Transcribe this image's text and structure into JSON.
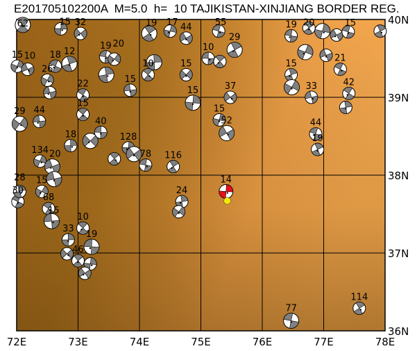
{
  "title": "E201705102200A  M=5.0  h=  10 TAJIKISTAN-XINJIANG BORDER REG.",
  "colors": {
    "main_event": "#e8101a",
    "epicenter": "#f5e800",
    "mechanism_fill": "#808080",
    "terrain_low": "#f2a040",
    "terrain_high": "#7a4c10"
  },
  "extent": {
    "lon": [
      72,
      78
    ],
    "lat": [
      36,
      40
    ]
  },
  "lon_ticks": [
    {
      "v": 72,
      "label": "72E"
    },
    {
      "v": 73,
      "label": "73E"
    },
    {
      "v": 74,
      "label": "74E"
    },
    {
      "v": 75,
      "label": "75E"
    },
    {
      "v": 76,
      "label": "76E"
    },
    {
      "v": 77,
      "label": "77E"
    },
    {
      "v": 78,
      "label": "78E"
    }
  ],
  "lat_ticks": [
    {
      "v": 40,
      "label": "40N"
    },
    {
      "v": 39,
      "label": "39N"
    },
    {
      "v": 38,
      "label": "38N"
    },
    {
      "v": 37,
      "label": "37N"
    },
    {
      "v": 36,
      "label": "36N"
    }
  ],
  "main_event": {
    "lon": 75.41,
    "lat": 37.79,
    "label": "14",
    "epi_lon": 75.43,
    "epi_lat": 37.67
  },
  "events": [
    {
      "lon": 72.1,
      "lat": 39.93,
      "label": "62"
    },
    {
      "lon": 72.72,
      "lat": 39.88,
      "label": "15"
    },
    {
      "lon": 73.04,
      "lat": 39.82,
      "label": "32"
    },
    {
      "lon": 73.45,
      "lat": 39.52,
      "label": "19"
    },
    {
      "lon": 74.16,
      "lat": 39.82,
      "label": "19"
    },
    {
      "lon": 74.5,
      "lat": 39.85,
      "label": "17"
    },
    {
      "lon": 74.76,
      "lat": 39.76,
      "label": "44"
    },
    {
      "lon": 75.29,
      "lat": 39.85,
      "label": "55"
    },
    {
      "lon": 75.55,
      "lat": 39.61,
      "label": "29"
    },
    {
      "lon": 72.01,
      "lat": 39.4,
      "label": "15"
    },
    {
      "lon": 72.18,
      "lat": 39.36,
      "label": "10"
    },
    {
      "lon": 72.63,
      "lat": 39.4,
      "label": "18"
    },
    {
      "lon": 72.86,
      "lat": 39.43,
      "label": "12"
    },
    {
      "lon": 72.5,
      "lat": 39.22,
      "label": "26"
    },
    {
      "lon": 72.54,
      "lat": 39.06,
      "label": ""
    },
    {
      "lon": 73.08,
      "lat": 39.03,
      "label": "22"
    },
    {
      "lon": 73.46,
      "lat": 39.29,
      "label": ""
    },
    {
      "lon": 73.59,
      "lat": 39.49,
      "label": "20"
    },
    {
      "lon": 73.85,
      "lat": 39.09,
      "label": "15"
    },
    {
      "lon": 74.14,
      "lat": 39.29,
      "label": "10"
    },
    {
      "lon": 74.24,
      "lat": 39.45,
      "label": ""
    },
    {
      "lon": 74.76,
      "lat": 39.29,
      "label": "15"
    },
    {
      "lon": 75.12,
      "lat": 39.5,
      "label": "10"
    },
    {
      "lon": 75.31,
      "lat": 39.46,
      "label": ""
    },
    {
      "lon": 74.87,
      "lat": 38.93,
      "label": "15"
    },
    {
      "lon": 75.48,
      "lat": 39.0,
      "label": "37"
    },
    {
      "lon": 76.47,
      "lat": 39.79,
      "label": "19"
    },
    {
      "lon": 76.76,
      "lat": 39.89,
      "label": "20"
    },
    {
      "lon": 76.98,
      "lat": 39.85,
      "label": ""
    },
    {
      "lon": 77.21,
      "lat": 39.8,
      "label": ""
    },
    {
      "lon": 77.4,
      "lat": 39.84,
      "label": "15"
    },
    {
      "lon": 77.92,
      "lat": 39.85,
      "label": ""
    },
    {
      "lon": 76.7,
      "lat": 39.58,
      "label": ""
    },
    {
      "lon": 77.04,
      "lat": 39.54,
      "label": ""
    },
    {
      "lon": 77.27,
      "lat": 39.36,
      "label": "21"
    },
    {
      "lon": 76.47,
      "lat": 39.29,
      "label": "15"
    },
    {
      "lon": 76.48,
      "lat": 39.13,
      "label": ""
    },
    {
      "lon": 76.8,
      "lat": 39.0,
      "label": "33"
    },
    {
      "lon": 77.41,
      "lat": 39.05,
      "label": "42"
    },
    {
      "lon": 77.36,
      "lat": 38.87,
      "label": ""
    },
    {
      "lon": 72.05,
      "lat": 38.66,
      "label": "29"
    },
    {
      "lon": 72.37,
      "lat": 38.69,
      "label": "44"
    },
    {
      "lon": 73.08,
      "lat": 38.78,
      "label": "15"
    },
    {
      "lon": 72.88,
      "lat": 38.38,
      "label": "18"
    },
    {
      "lon": 73.2,
      "lat": 38.44,
      "label": ""
    },
    {
      "lon": 73.37,
      "lat": 38.55,
      "label": "40"
    },
    {
      "lon": 73.59,
      "lat": 38.21,
      "label": ""
    },
    {
      "lon": 73.82,
      "lat": 38.35,
      "label": "128"
    },
    {
      "lon": 73.91,
      "lat": 38.27,
      "label": ""
    },
    {
      "lon": 74.1,
      "lat": 38.13,
      "label": "78"
    },
    {
      "lon": 74.55,
      "lat": 38.11,
      "label": "116"
    },
    {
      "lon": 75.3,
      "lat": 38.71,
      "label": "15"
    },
    {
      "lon": 75.42,
      "lat": 38.54,
      "label": "52"
    },
    {
      "lon": 76.87,
      "lat": 38.53,
      "label": "44"
    },
    {
      "lon": 76.9,
      "lat": 38.33,
      "label": "19"
    },
    {
      "lon": 72.38,
      "lat": 38.18,
      "label": "134"
    },
    {
      "lon": 72.58,
      "lat": 38.11,
      "label": "20"
    },
    {
      "lon": 72.02,
      "lat": 37.66,
      "label": "30"
    },
    {
      "lon": 72.05,
      "lat": 37.79,
      "label": "28"
    },
    {
      "lon": 72.41,
      "lat": 37.79,
      "label": "15"
    },
    {
      "lon": 72.61,
      "lat": 37.95,
      "label": ""
    },
    {
      "lon": 72.52,
      "lat": 37.57,
      "label": "68"
    },
    {
      "lon": 74.69,
      "lat": 37.66,
      "label": "24"
    },
    {
      "lon": 74.64,
      "lat": 37.53,
      "label": ""
    },
    {
      "lon": 72.57,
      "lat": 37.41,
      "label": "15"
    },
    {
      "lon": 73.08,
      "lat": 37.32,
      "label": "10"
    },
    {
      "lon": 72.84,
      "lat": 37.17,
      "label": "33"
    },
    {
      "lon": 72.82,
      "lat": 36.99,
      "label": ""
    },
    {
      "lon": 73.22,
      "lat": 37.08,
      "label": "19"
    },
    {
      "lon": 73.0,
      "lat": 36.9,
      "label": "46"
    },
    {
      "lon": 73.2,
      "lat": 36.86,
      "label": ""
    },
    {
      "lon": 73.11,
      "lat": 36.74,
      "label": ""
    },
    {
      "lon": 76.47,
      "lat": 36.13,
      "label": "77"
    },
    {
      "lon": 77.58,
      "lat": 36.29,
      "label": "114"
    }
  ]
}
